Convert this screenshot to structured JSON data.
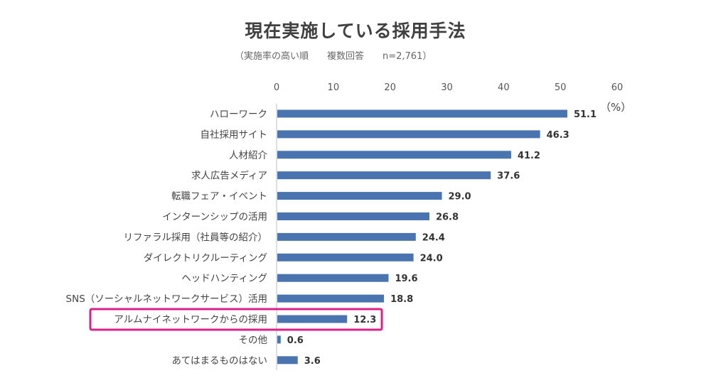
{
  "chart_data": {
    "type": "bar",
    "orientation": "horizontal",
    "title": "現在実施している採用手法",
    "subtitle": "（実施率の高い順　　複数回答　　n=2,761）",
    "unit": "（%）",
    "xlim": [
      0,
      60
    ],
    "xticks": [
      "0",
      "10",
      "20",
      "30",
      "40",
      "50",
      "60"
    ],
    "categories": [
      "ハローワーク",
      "自社採用サイト",
      "人材紹介",
      "求人広告メディア",
      "転職フェア・イベント",
      "インターンシップの活用",
      "リファラル採用（社員等の紹介）",
      "ダイレクトリクルーティング",
      "ヘッドハンティング",
      "SNS（ソーシャルネットワークサービス）活用",
      "アルムナイネットワークからの採用",
      "その他",
      "あてはまるものはない"
    ],
    "values": [
      51.1,
      46.3,
      41.2,
      37.6,
      29.0,
      26.8,
      24.4,
      24.0,
      19.6,
      18.8,
      12.3,
      0.6,
      3.6
    ],
    "value_labels": [
      "51.1",
      "46.3",
      "41.2",
      "37.6",
      "29.0",
      "26.8",
      "24.4",
      "24.0",
      "19.6",
      "18.8",
      "12.3",
      "0.6",
      "3.6"
    ],
    "highlight_category": "アルムナイネットワークからの採用",
    "bar_color": "#4a74b0",
    "highlight_color": "#e0208a"
  }
}
